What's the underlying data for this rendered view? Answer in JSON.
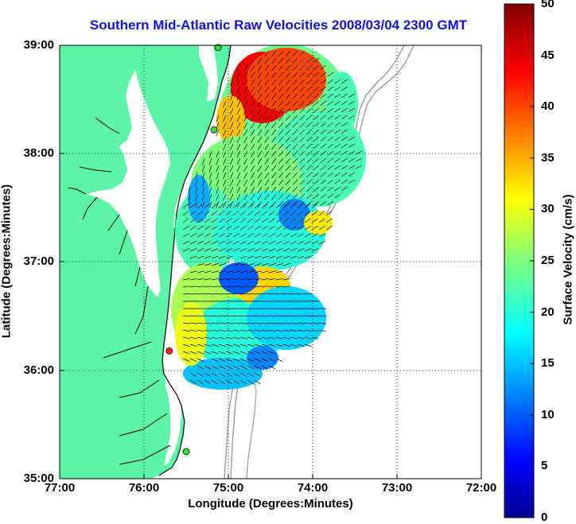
{
  "title": "Southern Mid-Atlantic Raw Velocities 2008/03/04 2300 GMT",
  "map": {
    "xlabel": "Longitude (Degrees:Minutes)",
    "ylabel": "Latitude (Degrees:Minutes)",
    "lon_ticks": [
      "77:00",
      "76:00",
      "75:00",
      "74:00",
      "73:00",
      "72:00"
    ],
    "lat_ticks": [
      "39:00",
      "38:00",
      "37:00",
      "36:00",
      "35:00"
    ],
    "lon_range": [
      -77,
      -72
    ],
    "lat_range": [
      35,
      39
    ],
    "grid": "dotted",
    "land_color": "#5cf5a8",
    "bathymetry_color": "#9a9a9a",
    "stations": [
      {
        "lon": -75.12,
        "lat": 38.98,
        "status": "active",
        "color": "#30e030"
      },
      {
        "lon": -75.17,
        "lat": 38.22,
        "status": "active",
        "color": "#30e030"
      },
      {
        "lon": -75.7,
        "lat": 36.18,
        "status": "inactive",
        "color": "#ff2020"
      },
      {
        "lon": -75.5,
        "lat": 35.25,
        "status": "active",
        "color": "#30e030"
      }
    ]
  },
  "colorbar": {
    "label": "Surface Velocity (cm/s)",
    "min": 0,
    "max": 50,
    "ticks": [
      "50",
      "45",
      "40",
      "35",
      "30",
      "25",
      "20",
      "15",
      "10",
      "5",
      "0"
    ],
    "colormap": "jet"
  }
}
